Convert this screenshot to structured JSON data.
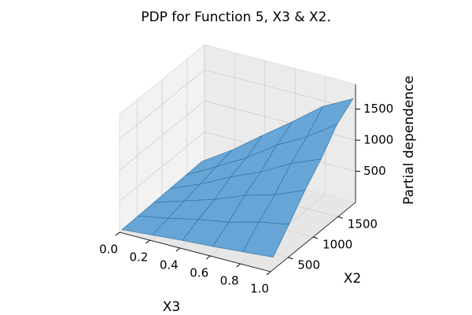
{
  "chart_data": {
    "type": "surface",
    "title": "PDP for Function 5, X3 & X2.",
    "xlabel": "X3",
    "ylabel": "X2",
    "zlabel": "Partial dependence",
    "x": [
      0,
      0.2,
      0.4,
      0.6,
      0.8,
      1
    ],
    "y": [
      200,
      520,
      840,
      1160,
      1480,
      1800
    ],
    "z": [
      [
        10,
        50,
        90,
        120,
        160,
        200
      ],
      [
        20,
        110,
        220,
        300,
        430,
        520
      ],
      [
        30,
        180,
        330,
        520,
        660,
        860
      ],
      [
        40,
        240,
        480,
        690,
        950,
        1150
      ],
      [
        50,
        310,
        580,
        910,
        1170,
        1500
      ],
      [
        60,
        370,
        730,
        1080,
        1450,
        1700
      ]
    ],
    "color": "#5b9fd4",
    "xlim": [
      0,
      1
    ],
    "ylim": [
      150,
      1850
    ],
    "zlim": [
      0,
      1900
    ],
    "xticks": [
      {
        "value": 0,
        "label": "0.0"
      },
      0.2,
      0.4,
      0.6,
      0.8,
      {
        "value": 1,
        "label": "1.0"
      }
    ],
    "yticks": [
      500,
      1000,
      1500
    ],
    "zticks": [
      500,
      1000,
      1500
    ],
    "grid": true
  }
}
